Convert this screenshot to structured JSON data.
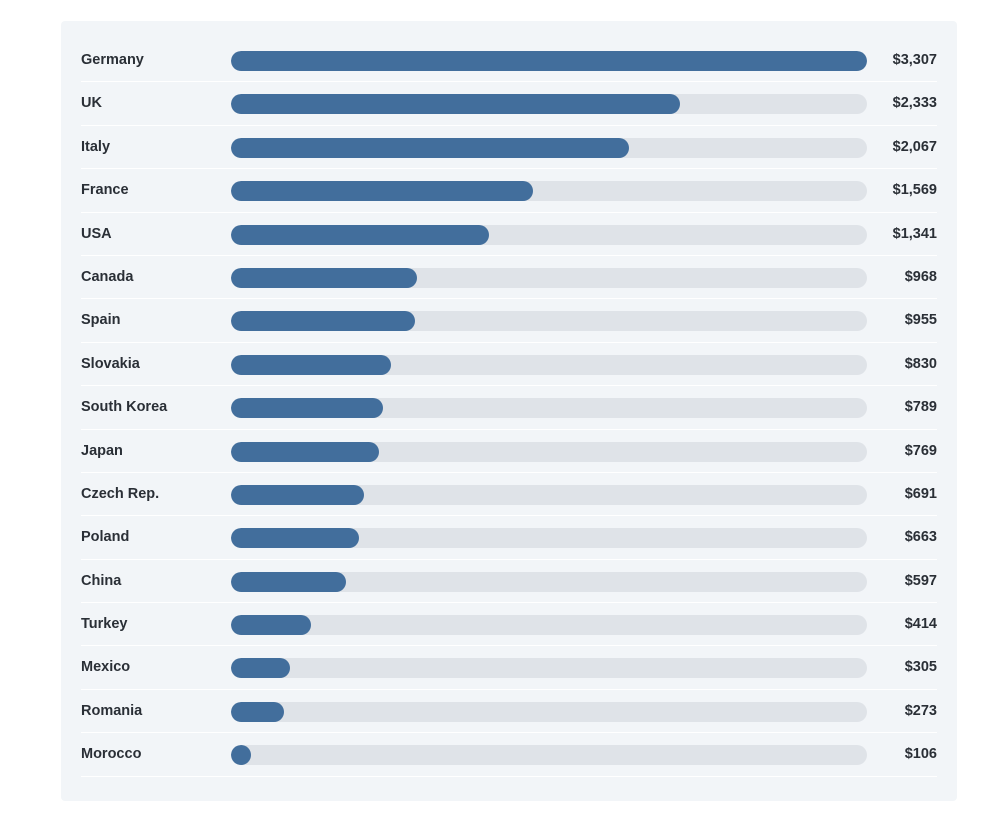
{
  "colors": {
    "bar": "#426e9c",
    "track": "#dfe3e8",
    "card_background": "#f2f5f8",
    "text": "#2a2f36"
  },
  "chart_data": {
    "type": "bar",
    "orientation": "horizontal",
    "max_value": 3307,
    "categories": [
      "Germany",
      "UK",
      "Italy",
      "France",
      "USA",
      "Canada",
      "Spain",
      "Slovakia",
      "South Korea",
      "Japan",
      "Czech Rep.",
      "Poland",
      "China",
      "Turkey",
      "Mexico",
      "Romania",
      "Morocco"
    ],
    "values": [
      3307,
      2333,
      2067,
      1569,
      1341,
      968,
      955,
      830,
      789,
      769,
      691,
      663,
      597,
      414,
      305,
      273,
      106
    ],
    "value_labels": [
      "$3,307",
      "$2,333",
      "$2,067",
      "$1,569",
      "$1,341",
      "$968",
      "$955",
      "$830",
      "$789",
      "$769",
      "$691",
      "$663",
      "$597",
      "$414",
      "$305",
      "$273",
      "$106"
    ]
  }
}
